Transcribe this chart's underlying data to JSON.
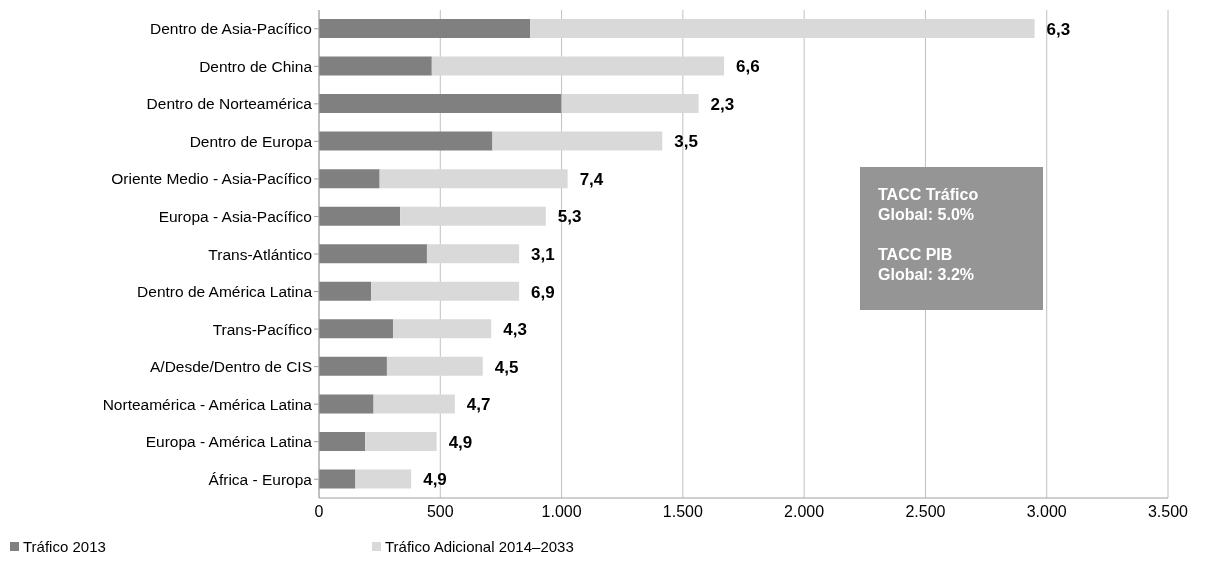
{
  "chart_data": {
    "type": "bar",
    "orientation": "horizontal",
    "stacked": true,
    "categories": [
      "Dentro de Asia-Pacífico",
      "Dentro de China",
      "Dentro de Norteamérica",
      "Dentro de Europa",
      "Oriente Medio - Asia-Pacífico",
      "Europa - Asia-Pacífico",
      "Trans-Atlántico",
      "Dentro de América Latina",
      "Trans-Pacífico",
      "A/Desde/Dentro de CIS",
      "Norteamérica - América Latina",
      "Europa - América Latina",
      "África - Europa"
    ],
    "series": [
      {
        "name": "Tráfico 2013",
        "color": "#808080",
        "values": [
          870,
          465,
          1000,
          715,
          250,
          335,
          445,
          215,
          305,
          280,
          225,
          190,
          150
        ]
      },
      {
        "name": "Tráfico Adicional 2014–2033",
        "color": "#d9d9d9",
        "values": [
          2080,
          1205,
          565,
          700,
          775,
          600,
          380,
          610,
          405,
          395,
          335,
          295,
          230
        ]
      }
    ],
    "xlim": [
      0,
      3500
    ],
    "xticks": [
      {
        "value": 0,
        "label": "0"
      },
      {
        "value": 500,
        "label": "500"
      },
      {
        "value": 1000,
        "label": "1.000"
      },
      {
        "value": 1500,
        "label": "1.500"
      },
      {
        "value": 2000,
        "label": "2.000"
      },
      {
        "value": 2500,
        "label": "2.500"
      },
      {
        "value": 3000,
        "label": "3.000"
      },
      {
        "value": 3500,
        "label": "3.500"
      }
    ],
    "grid": "x",
    "legend": "bottom left",
    "annotations": [
      "TACC Tráfico Global: 5.0%",
      "TACC PIB Global: 3.2%",
      {
        "text": "6,3",
        "x": 2950,
        "y": "Dentro de Asia-Pacífico"
      },
      {
        "text": "6,6",
        "x": 1670,
        "y": "Dentro de China"
      },
      {
        "text": "2,3",
        "x": 1565,
        "y": "Dentro de Norteamérica"
      },
      {
        "text": "3,5",
        "x": 1415,
        "y": "Dentro de Europa"
      },
      {
        "text": "7,4",
        "x": 1025,
        "y": "Oriente Medio - Asia-Pacífico"
      },
      {
        "text": "5,3",
        "x": 935,
        "y": "Europa - Asia-Pacífico"
      },
      {
        "text": "3,1",
        "x": 825,
        "y": "Trans-Atlántico"
      },
      {
        "text": "6,9",
        "x": 825,
        "y": "Dentro de América Latina"
      },
      {
        "text": "4,3",
        "x": 710,
        "y": "Trans-Pacífico"
      },
      {
        "text": "4,5",
        "x": 675,
        "y": "A/Desde/Dentro de CIS"
      },
      {
        "text": "4,7",
        "x": 560,
        "y": "Norteamérica - América Latina"
      },
      {
        "text": "4,9",
        "x": 485,
        "y": "Europa - América Latina"
      },
      {
        "text": "4,9",
        "x": 380,
        "y": "África - Europa"
      }
    ]
  }
}
